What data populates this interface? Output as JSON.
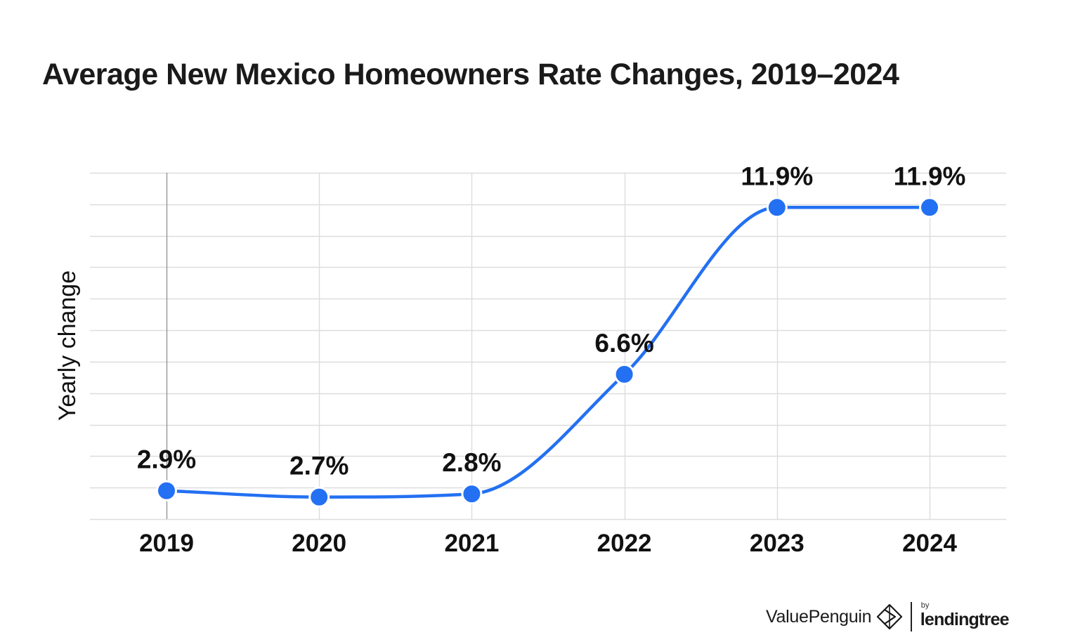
{
  "chart_data": {
    "type": "line",
    "title": "Average New Mexico Homeowners Rate Changes, 2019–2024",
    "xlabel": "",
    "ylabel": "Yearly change",
    "categories": [
      "2019",
      "2020",
      "2021",
      "2022",
      "2023",
      "2024"
    ],
    "values": [
      2.9,
      2.7,
      2.8,
      6.6,
      11.9,
      11.9
    ],
    "data_labels": [
      "2.9%",
      "2.7%",
      "2.8%",
      "6.6%",
      "11.9%",
      "11.9%"
    ],
    "ylim": [
      2.0,
      13.0
    ],
    "y_tick_step": 1,
    "y_tick_labels_shown": false,
    "grid": true,
    "legend": "none",
    "smooth": true,
    "line_color": "#2370f2",
    "gridline_color": "#dddddd"
  },
  "branding": {
    "brand_name": "ValuePenguin",
    "brand_icon": "value-penguin-logo-icon",
    "partner_prefix": "by",
    "partner_name": "lendingtree"
  }
}
